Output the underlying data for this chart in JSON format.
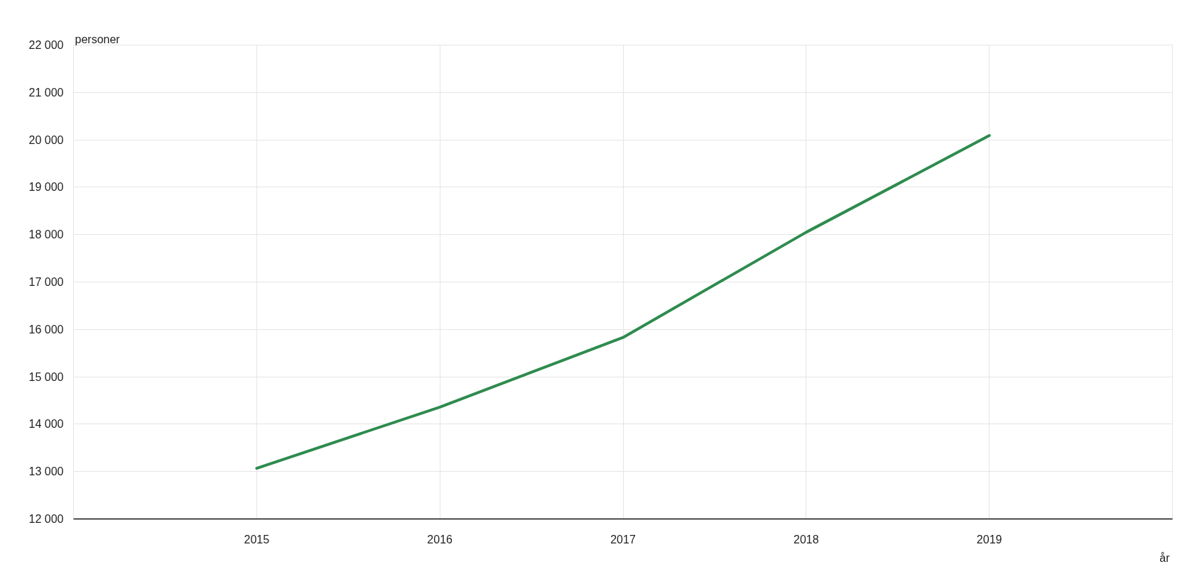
{
  "chart_data": {
    "type": "line",
    "ylabel": "personer",
    "xlabel": "år",
    "x": [
      2015,
      2016,
      2017,
      2018,
      2019
    ],
    "series": [
      {
        "color": "#2e8b4e",
        "values": [
          13070,
          14360,
          15830,
          18050,
          20090
        ]
      }
    ],
    "xlim": [
      2014,
      2020
    ],
    "xticks": [
      2015,
      2016,
      2017,
      2018,
      2019
    ],
    "ylim": [
      12000,
      22000
    ],
    "yticks": [
      {
        "value": 12000,
        "label": "12 000"
      },
      {
        "value": 13000,
        "label": "13 000"
      },
      {
        "value": 14000,
        "label": "14 000"
      },
      {
        "value": 15000,
        "label": "15 000"
      },
      {
        "value": 16000,
        "label": "16 000"
      },
      {
        "value": 17000,
        "label": "17 000"
      },
      {
        "value": 18000,
        "label": "18 000"
      },
      {
        "value": 19000,
        "label": "19 000"
      },
      {
        "value": 20000,
        "label": "20 000"
      },
      {
        "value": 21000,
        "label": "21 000"
      },
      {
        "value": 22000,
        "label": "22 000"
      }
    ],
    "grid": true,
    "line_style": "solid"
  }
}
